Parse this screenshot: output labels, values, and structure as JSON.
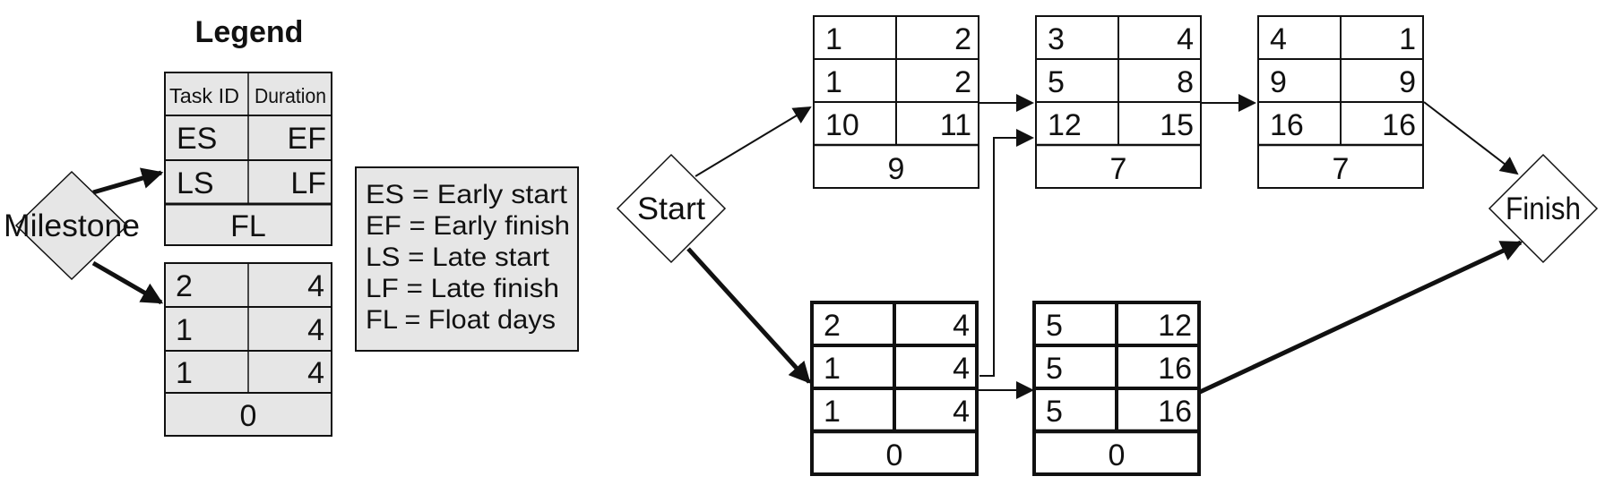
{
  "legend": {
    "title": "Legend",
    "milestone_label": "Milestone",
    "key_node": {
      "header": [
        "Task ID",
        "Duration"
      ],
      "rows": [
        [
          "ES",
          "EF"
        ],
        [
          "LS",
          "LF"
        ]
      ],
      "footer": "FL"
    },
    "example_node": {
      "rows": [
        [
          "2",
          "4"
        ],
        [
          "1",
          "4"
        ],
        [
          "1",
          "4"
        ]
      ],
      "footer": "0"
    },
    "definitions": [
      "ES = Early start",
      "EF = Early finish",
      "LS = Late start",
      "LF = Late finish",
      "FL = Float days"
    ]
  },
  "network": {
    "start_label": "Start",
    "finish_label": "Finish",
    "tasks": [
      {
        "id": "task-1",
        "rows": [
          [
            "1",
            "2"
          ],
          [
            "1",
            "2"
          ],
          [
            "10",
            "11"
          ]
        ],
        "float": "9",
        "critical": false
      },
      {
        "id": "task-3",
        "rows": [
          [
            "3",
            "4"
          ],
          [
            "5",
            "8"
          ],
          [
            "12",
            "15"
          ]
        ],
        "float": "7",
        "critical": false
      },
      {
        "id": "task-4",
        "rows": [
          [
            "4",
            "1"
          ],
          [
            "9",
            "9"
          ],
          [
            "16",
            "16"
          ]
        ],
        "float": "7",
        "critical": false
      },
      {
        "id": "task-2",
        "rows": [
          [
            "2",
            "4"
          ],
          [
            "1",
            "4"
          ],
          [
            "1",
            "4"
          ]
        ],
        "float": "0",
        "critical": true
      },
      {
        "id": "task-5",
        "rows": [
          [
            "5",
            "12"
          ],
          [
            "5",
            "16"
          ],
          [
            "5",
            "16"
          ]
        ],
        "float": "0",
        "critical": true
      }
    ]
  },
  "colors": {
    "node_fill": "#e6e6e6",
    "line": "#111111",
    "background": "#ffffff"
  }
}
